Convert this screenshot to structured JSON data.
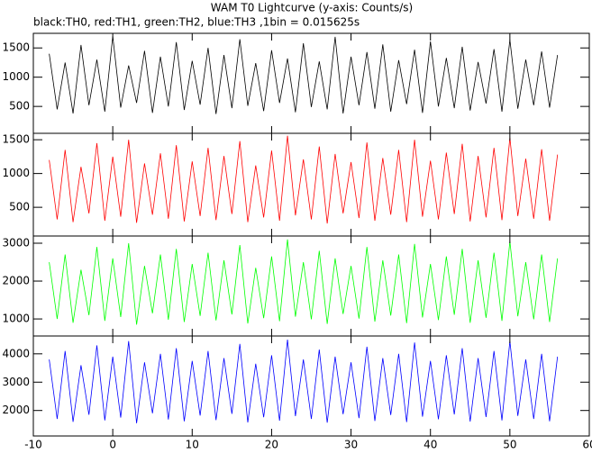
{
  "chart_data": [
    {
      "type": "line",
      "title": "WAM T0 Lightcurve (y-axis: Counts/s)",
      "subtitle": "black:TH0, red:TH1, green:TH2, blue:TH3 ,1bin = 0.015625s",
      "x": [
        -8,
        -7,
        -6,
        -5,
        -4,
        -3,
        -2,
        -1,
        0,
        1,
        2,
        3,
        4,
        5,
        6,
        7,
        8,
        9,
        10,
        11,
        12,
        13,
        14,
        15,
        16,
        17,
        18,
        19,
        20,
        21,
        22,
        23,
        24,
        25,
        26,
        27,
        28,
        29,
        30,
        31,
        32,
        33,
        34,
        35,
        36,
        37,
        38,
        39,
        40,
        41,
        42,
        43,
        44,
        45,
        46,
        47,
        48,
        49,
        50,
        51,
        52,
        53,
        54,
        55,
        56
      ],
      "series": [
        {
          "color": "#000000",
          "values": [
            1400,
            450,
            1250,
            380,
            1550,
            520,
            1300,
            410,
            1700,
            480,
            1200,
            560,
            1450,
            390,
            1350,
            500,
            1600,
            440,
            1280,
            530,
            1500,
            370,
            1380,
            470,
            1650,
            510,
            1240,
            420,
            1460,
            560,
            1320,
            400,
            1580,
            490,
            1270,
            450,
            1690,
            380,
            1350,
            520,
            1430,
            460,
            1560,
            410,
            1290,
            540,
            1470,
            390,
            1610,
            500,
            1330,
            470,
            1520,
            430,
            1260,
            550,
            1480,
            410,
            1640,
            460,
            1300,
            520,
            1440,
            480,
            1380
          ]
        }
      ],
      "xlim": [
        -10,
        60
      ],
      "ylim": [
        40,
        1750
      ],
      "yticks": [
        500,
        1000,
        1500
      ]
    },
    {
      "type": "line",
      "x": [
        -8,
        -7,
        -6,
        -5,
        -4,
        -3,
        -2,
        -1,
        0,
        1,
        2,
        3,
        4,
        5,
        6,
        7,
        8,
        9,
        10,
        11,
        12,
        13,
        14,
        15,
        16,
        17,
        18,
        19,
        20,
        21,
        22,
        23,
        24,
        25,
        26,
        27,
        28,
        29,
        30,
        31,
        32,
        33,
        34,
        35,
        36,
        37,
        38,
        39,
        40,
        41,
        42,
        43,
        44,
        45,
        46,
        47,
        48,
        49,
        50,
        51,
        52,
        53,
        54,
        55,
        56
      ],
      "series": [
        {
          "color": "#ff0000",
          "values": [
            1200,
            320,
            1350,
            280,
            1100,
            410,
            1450,
            300,
            1250,
            360,
            1500,
            270,
            1150,
            390,
            1300,
            330,
            1420,
            290,
            1180,
            370,
            1380,
            310,
            1260,
            400,
            1480,
            280,
            1120,
            350,
            1340,
            300,
            1560,
            380,
            1210,
            320,
            1400,
            260,
            1290,
            410,
            1170,
            340,
            1460,
            300,
            1230,
            390,
            1350,
            280,
            1500,
            360,
            1190,
            320,
            1310,
            400,
            1440,
            290,
            1260,
            350,
            1380,
            310,
            1530,
            370,
            1220,
            330,
            1360,
            300,
            1280
          ]
        }
      ],
      "xlim": [
        -10,
        60
      ],
      "ylim": [
        75,
        1595
      ],
      "yticks": [
        500,
        1000,
        1500
      ]
    },
    {
      "type": "line",
      "x": [
        -8,
        -7,
        -6,
        -5,
        -4,
        -3,
        -2,
        -1,
        0,
        1,
        2,
        3,
        4,
        5,
        6,
        7,
        8,
        9,
        10,
        11,
        12,
        13,
        14,
        15,
        16,
        17,
        18,
        19,
        20,
        21,
        22,
        23,
        24,
        25,
        26,
        27,
        28,
        29,
        30,
        31,
        32,
        33,
        34,
        35,
        36,
        37,
        38,
        39,
        40,
        41,
        42,
        43,
        44,
        45,
        46,
        47,
        48,
        49,
        50,
        51,
        52,
        53,
        54,
        55,
        56
      ],
      "series": [
        {
          "color": "#00ff00",
          "values": [
            2500,
            1000,
            2700,
            900,
            2300,
            1100,
            2900,
            950,
            2600,
            1050,
            3000,
            850,
            2400,
            1150,
            2700,
            980,
            2850,
            920,
            2450,
            1080,
            2750,
            960,
            2550,
            1120,
            2950,
            880,
            2350,
            1020,
            2650,
            940,
            3100,
            1060,
            2500,
            990,
            2800,
            870,
            2600,
            1130,
            2400,
            1010,
            2900,
            930,
            2550,
            1090,
            2700,
            890,
            2980,
            1040,
            2450,
            970,
            2650,
            1110,
            2850,
            900,
            2550,
            1030,
            2750,
            950,
            3050,
            1070,
            2500,
            990,
            2700,
            920,
            2600
          ]
        }
      ],
      "xlim": [
        -10,
        60
      ],
      "ylim": [
        550,
        3190
      ],
      "yticks": [
        1000,
        2000,
        3000
      ]
    },
    {
      "type": "line",
      "x": [
        -8,
        -7,
        -6,
        -5,
        -4,
        -3,
        -2,
        -1,
        0,
        1,
        2,
        3,
        4,
        5,
        6,
        7,
        8,
        9,
        10,
        11,
        12,
        13,
        14,
        15,
        16,
        17,
        18,
        19,
        20,
        21,
        22,
        23,
        24,
        25,
        26,
        27,
        28,
        29,
        30,
        31,
        32,
        33,
        34,
        35,
        36,
        37,
        38,
        39,
        40,
        41,
        42,
        43,
        44,
        45,
        46,
        47,
        48,
        49,
        50,
        51,
        52,
        53,
        54,
        55,
        56
      ],
      "series": [
        {
          "color": "#0000ff",
          "values": [
            3800,
            1700,
            4100,
            1600,
            3600,
            1850,
            4300,
            1650,
            3900,
            1750,
            4450,
            1550,
            3700,
            1900,
            4000,
            1680,
            4200,
            1620,
            3750,
            1820,
            4100,
            1660,
            3850,
            1880,
            4350,
            1580,
            3650,
            1760,
            3950,
            1640,
            4500,
            1800,
            3800,
            1700,
            4150,
            1570,
            3900,
            1870,
            3700,
            1730,
            4250,
            1630,
            3850,
            1840,
            4000,
            1590,
            4400,
            1780,
            3750,
            1690,
            3950,
            1860,
            4200,
            1610,
            3850,
            1770,
            4100,
            1650,
            4450,
            1810,
            3800,
            1700,
            4000,
            1620,
            3900
          ]
        }
      ],
      "xlim": [
        -10,
        60
      ],
      "ylim": [
        1100,
        4630
      ],
      "yticks": [
        2000,
        3000,
        4000
      ],
      "xticks": [
        -10,
        0,
        10,
        20,
        30,
        40,
        50,
        60
      ]
    }
  ]
}
